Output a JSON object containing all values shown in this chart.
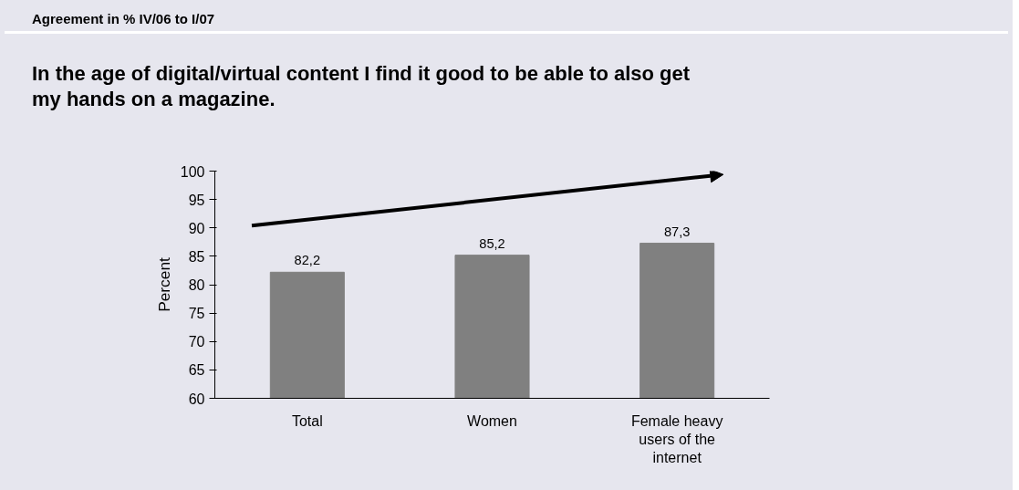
{
  "chart_data": {
    "type": "bar",
    "subtitle": "Agreement in % IV/06 to I/07",
    "title": "In the age of digital/virtual content I find it good to be able to also get my hands on a magazine.",
    "ylabel": "Percent",
    "categories": [
      "Total",
      "Women",
      "Female heavy users of the internet"
    ],
    "values": [
      82.2,
      85.2,
      87.3
    ],
    "color": "#808080",
    "value_labels": [
      "82,2",
      "85,2",
      "87,3"
    ],
    "ylim": [
      60,
      100
    ],
    "yticks": [
      60,
      65,
      70,
      75,
      80,
      85,
      90,
      95,
      100
    ]
  }
}
